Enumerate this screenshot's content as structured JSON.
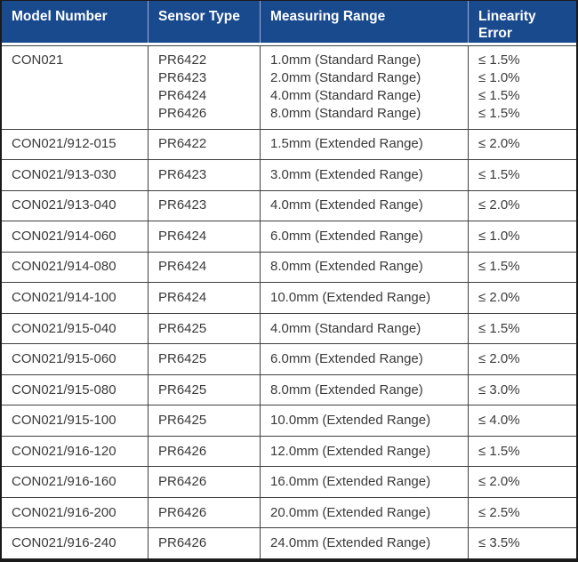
{
  "table": {
    "columns": [
      "Model Number",
      "Sensor Type",
      "Measuring Range",
      "Linearity Error"
    ],
    "rows": [
      {
        "model": "CON021",
        "sensor": [
          "PR6422",
          "PR6423",
          "PR6424",
          "PR6426"
        ],
        "range": [
          "1.0mm (Standard Range)",
          "2.0mm (Standard Range)",
          "4.0mm (Standard Range)",
          "8.0mm (Standard Range)"
        ],
        "error": [
          "≤ 1.5%",
          "≤ 1.0%",
          "≤ 1.5%",
          "≤ 1.5%"
        ]
      },
      {
        "model": "CON021/912-015",
        "sensor": "PR6422",
        "range": "1.5mm (Extended Range)",
        "error": "≤ 2.0%"
      },
      {
        "model": "CON021/913-030",
        "sensor": "PR6423",
        "range": "3.0mm (Extended Range)",
        "error": "≤ 1.5%"
      },
      {
        "model": "CON021/913-040",
        "sensor": "PR6423",
        "range": "4.0mm (Extended Range)",
        "error": "≤ 2.0%"
      },
      {
        "model": "CON021/914-060",
        "sensor": "PR6424",
        "range": "6.0mm (Extended Range)",
        "error": "≤ 1.0%"
      },
      {
        "model": "CON021/914-080",
        "sensor": "PR6424",
        "range": "8.0mm (Extended Range)",
        "error": "≤ 1.5%"
      },
      {
        "model": "CON021/914-100",
        "sensor": "PR6424",
        "range": "10.0mm (Extended Range)",
        "error": "≤ 2.0%"
      },
      {
        "model": "CON021/915-040",
        "sensor": "PR6425",
        "range": "4.0mm (Standard Range)",
        "error": "≤ 1.5%"
      },
      {
        "model": "CON021/915-060",
        "sensor": "PR6425",
        "range": "6.0mm (Extended Range)",
        "error": "≤ 2.0%"
      },
      {
        "model": "CON021/915-080",
        "sensor": "PR6425",
        "range": "8.0mm (Extended Range)",
        "error": "≤ 3.0%"
      },
      {
        "model": "CON021/915-100",
        "sensor": "PR6425",
        "range": "10.0mm (Extended Range)",
        "error": "≤ 4.0%"
      },
      {
        "model": "CON021/916-120",
        "sensor": "PR6426",
        "range": "12.0mm (Extended Range)",
        "error": "≤ 1.5%"
      },
      {
        "model": "CON021/916-160",
        "sensor": "PR6426",
        "range": "16.0mm (Extended Range)",
        "error": "≤ 2.0%"
      },
      {
        "model": "CON021/916-200",
        "sensor": "PR6426",
        "range": "20.0mm (Extended Range)",
        "error": "≤ 2.5%"
      },
      {
        "model": "CON021/916-240",
        "sensor": "PR6426",
        "range": "24.0mm (Extended Range)",
        "error": "≤ 3.5%"
      }
    ]
  },
  "colors": {
    "header_bg": "#1A4A8E",
    "header_text": "#FFFFFF",
    "header_divider": "#9FB0CC",
    "body_text": "#3A3A3A",
    "grid_border": "#3F3F3F",
    "outer_border": "#1A1A1A"
  }
}
